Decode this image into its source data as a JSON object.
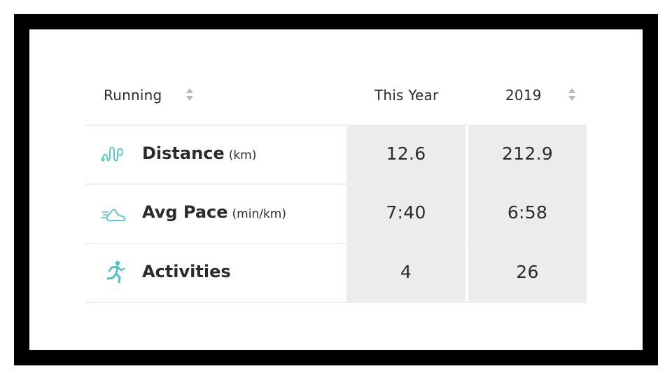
{
  "header": {
    "category_label": "Running",
    "col_this_year": "This Year",
    "col_2019": "2019"
  },
  "rows": [
    {
      "label": "Distance",
      "unit": "(km)",
      "this_year": "12.6",
      "y2019": "212.9",
      "icon": "route-icon"
    },
    {
      "label": "Avg Pace",
      "unit": "(min/km)",
      "this_year": "7:40",
      "y2019": "6:58",
      "icon": "running-shoe-icon"
    },
    {
      "label": "Activities",
      "unit": "",
      "this_year": "4",
      "y2019": "26",
      "icon": "runner-icon"
    }
  ],
  "colors": {
    "accent": "#4cc1c7",
    "cell_bg": "#ececec",
    "text": "#2b2b2b",
    "frame": "#000000"
  }
}
